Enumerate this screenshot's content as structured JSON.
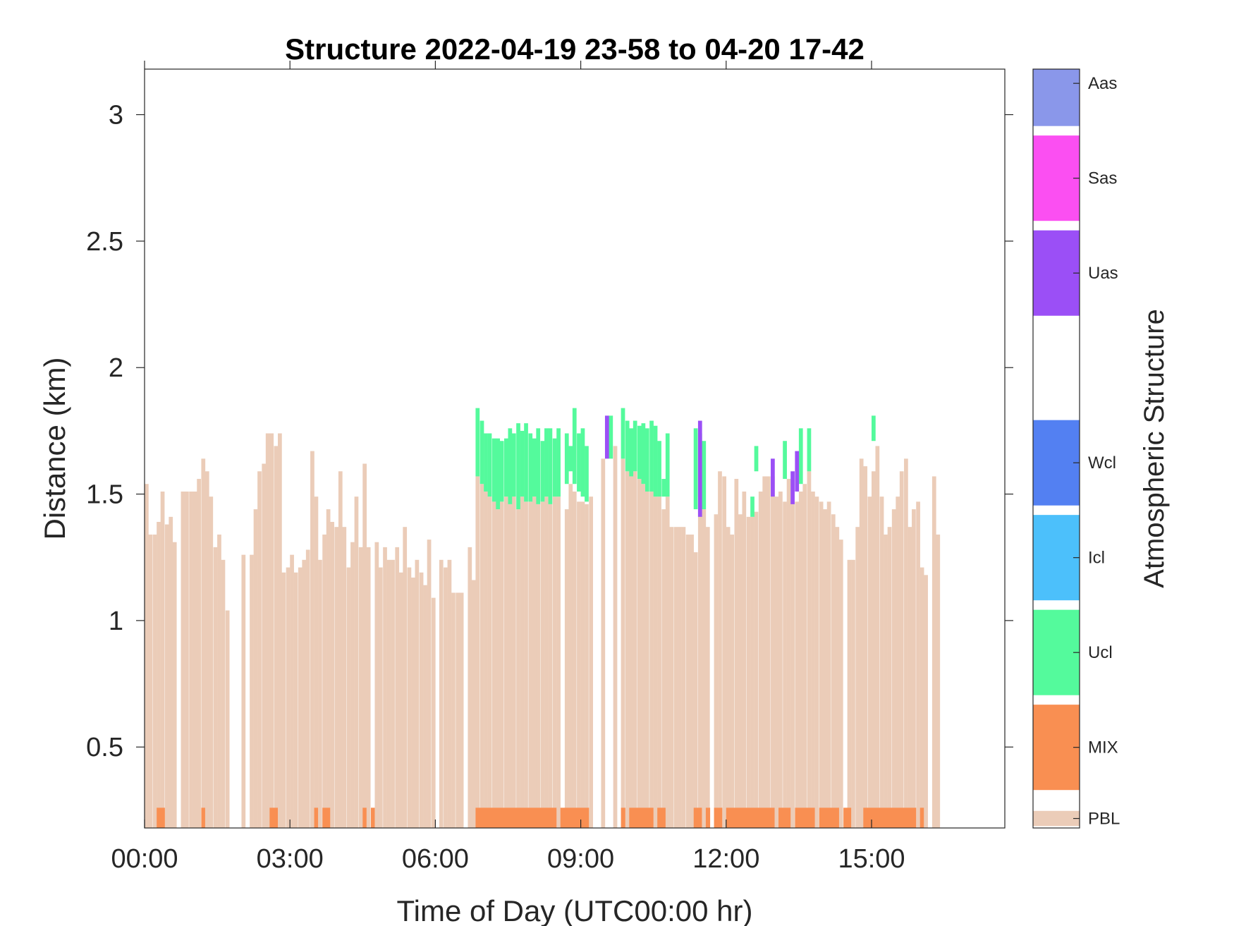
{
  "chart_data": {
    "type": "heatmap",
    "title": "Structure 2022-04-19 23-58 to 04-20 17-42",
    "xlabel": "Time of Day (UTC00:00 hr)",
    "ylabel": "Distance (km)",
    "xlim": [
      0,
      17.75
    ],
    "ylim": [
      0.18,
      3.18
    ],
    "x_ticks": [
      {
        "value": 0,
        "label": "00:00"
      },
      {
        "value": 3,
        "label": "03:00"
      },
      {
        "value": 6,
        "label": "06:00"
      },
      {
        "value": 9,
        "label": "09:00"
      },
      {
        "value": 12,
        "label": "12:00"
      },
      {
        "value": 15,
        "label": "15:00"
      }
    ],
    "y_ticks": [
      {
        "value": 0.5,
        "label": "0.5"
      },
      {
        "value": 1,
        "label": "1"
      },
      {
        "value": 1.5,
        "label": "1.5"
      },
      {
        "value": 2,
        "label": "2"
      },
      {
        "value": 2.5,
        "label": "2.5"
      },
      {
        "value": 3,
        "label": "3"
      }
    ],
    "time_step_hours": 0.0833,
    "colorbar": {
      "title": "Atmospheric Structure",
      "classes": [
        {
          "label": "PBL",
          "color": "#ebccb8"
        },
        {
          "label": "MIX",
          "color": "#f98f52"
        },
        {
          "label": "Ucl",
          "color": "#54fa9c"
        },
        {
          "label": "Icl",
          "color": "#4cc0fb"
        },
        {
          "label": "Wcl",
          "color": "#5380f2"
        },
        {
          "label": "Uas",
          "color": "#9b4ff6"
        },
        {
          "label": "Sas",
          "color": "#fb4ff2"
        },
        {
          "label": "Aas",
          "color": "#8a97ea"
        }
      ]
    },
    "series": [
      {
        "name": "PBL",
        "profile_top_km": [
          [
            0.0,
            1.54
          ],
          [
            0.08,
            1.34
          ],
          [
            0.17,
            1.34
          ],
          [
            0.25,
            1.39
          ],
          [
            0.33,
            1.51
          ],
          [
            0.42,
            1.38
          ],
          [
            0.5,
            1.41
          ],
          [
            0.58,
            1.31
          ],
          [
            0.75,
            1.51
          ],
          [
            0.83,
            1.51
          ],
          [
            0.92,
            1.51
          ],
          [
            1.0,
            1.51
          ],
          [
            1.08,
            1.56
          ],
          [
            1.17,
            1.64
          ],
          [
            1.25,
            1.59
          ],
          [
            1.33,
            1.49
          ],
          [
            1.42,
            1.29
          ],
          [
            1.5,
            1.34
          ],
          [
            1.58,
            1.24
          ],
          [
            1.67,
            1.04
          ],
          [
            2.0,
            1.26
          ],
          [
            2.17,
            1.26
          ],
          [
            2.25,
            1.44
          ],
          [
            2.33,
            1.59
          ],
          [
            2.42,
            1.62
          ],
          [
            2.5,
            1.74
          ],
          [
            2.58,
            1.74
          ],
          [
            2.67,
            1.69
          ],
          [
            2.75,
            1.74
          ],
          [
            2.83,
            1.19
          ],
          [
            2.92,
            1.21
          ],
          [
            3.0,
            1.26
          ],
          [
            3.08,
            1.19
          ],
          [
            3.17,
            1.21
          ],
          [
            3.25,
            1.24
          ],
          [
            3.33,
            1.28
          ],
          [
            3.42,
            1.67
          ],
          [
            3.5,
            1.49
          ],
          [
            3.58,
            1.24
          ],
          [
            3.67,
            1.34
          ],
          [
            3.75,
            1.44
          ],
          [
            3.83,
            1.39
          ],
          [
            3.92,
            1.37
          ],
          [
            4.0,
            1.59
          ],
          [
            4.08,
            1.37
          ],
          [
            4.17,
            1.21
          ],
          [
            4.25,
            1.31
          ],
          [
            4.33,
            1.49
          ],
          [
            4.42,
            1.29
          ],
          [
            4.5,
            1.62
          ],
          [
            4.58,
            1.29
          ],
          [
            4.75,
            1.31
          ],
          [
            4.83,
            1.21
          ],
          [
            4.92,
            1.29
          ],
          [
            5.0,
            1.24
          ],
          [
            5.08,
            1.24
          ],
          [
            5.17,
            1.29
          ],
          [
            5.25,
            1.19
          ],
          [
            5.33,
            1.37
          ],
          [
            5.42,
            1.21
          ],
          [
            5.5,
            1.17
          ],
          [
            5.58,
            1.24
          ],
          [
            5.67,
            1.19
          ],
          [
            5.75,
            1.14
          ],
          [
            5.83,
            1.32
          ],
          [
            5.92,
            1.09
          ],
          [
            6.08,
            1.24
          ],
          [
            6.17,
            1.21
          ],
          [
            6.25,
            1.24
          ],
          [
            6.33,
            1.11
          ],
          [
            6.42,
            1.11
          ],
          [
            6.5,
            1.11
          ],
          [
            6.67,
            1.29
          ],
          [
            6.75,
            1.16
          ],
          [
            6.83,
            1.57
          ],
          [
            6.92,
            1.54
          ],
          [
            7.0,
            1.51
          ],
          [
            7.08,
            1.49
          ],
          [
            7.17,
            1.47
          ],
          [
            7.25,
            1.44
          ],
          [
            7.33,
            1.47
          ],
          [
            7.42,
            1.49
          ],
          [
            7.5,
            1.46
          ],
          [
            7.58,
            1.49
          ],
          [
            7.67,
            1.44
          ],
          [
            7.75,
            1.49
          ],
          [
            7.83,
            1.47
          ],
          [
            7.92,
            1.47
          ],
          [
            8.0,
            1.49
          ],
          [
            8.08,
            1.46
          ],
          [
            8.17,
            1.47
          ],
          [
            8.25,
            1.49
          ],
          [
            8.33,
            1.46
          ],
          [
            8.42,
            1.49
          ],
          [
            8.5,
            1.49
          ],
          [
            8.67,
            1.44
          ],
          [
            8.75,
            1.54
          ],
          [
            8.83,
            1.51
          ],
          [
            8.92,
            1.47
          ],
          [
            9.0,
            1.47
          ],
          [
            9.08,
            1.46
          ],
          [
            9.17,
            1.49
          ],
          [
            9.42,
            1.64
          ],
          [
            9.67,
            1.69
          ],
          [
            9.83,
            1.64
          ],
          [
            9.92,
            1.59
          ],
          [
            10.0,
            1.57
          ],
          [
            10.08,
            1.59
          ],
          [
            10.17,
            1.56
          ],
          [
            10.25,
            1.54
          ],
          [
            10.33,
            1.51
          ],
          [
            10.42,
            1.51
          ],
          [
            10.5,
            1.49
          ],
          [
            10.58,
            1.49
          ],
          [
            10.67,
            1.44
          ],
          [
            10.75,
            1.49
          ],
          [
            10.83,
            1.37
          ],
          [
            10.92,
            1.37
          ],
          [
            11.0,
            1.37
          ],
          [
            11.08,
            1.37
          ],
          [
            11.17,
            1.34
          ],
          [
            11.25,
            1.34
          ],
          [
            11.33,
            1.27
          ],
          [
            11.42,
            1.44
          ],
          [
            11.5,
            1.44
          ],
          [
            11.58,
            1.37
          ],
          [
            11.75,
            1.42
          ],
          [
            11.83,
            1.59
          ],
          [
            11.92,
            1.57
          ],
          [
            12.0,
            1.37
          ],
          [
            12.08,
            1.34
          ],
          [
            12.17,
            1.56
          ],
          [
            12.25,
            1.42
          ],
          [
            12.33,
            1.51
          ],
          [
            12.42,
            1.41
          ],
          [
            12.5,
            1.41
          ],
          [
            12.58,
            1.43
          ],
          [
            12.67,
            1.51
          ],
          [
            12.75,
            1.57
          ],
          [
            12.83,
            1.57
          ],
          [
            12.92,
            1.57
          ],
          [
            13.0,
            1.49
          ],
          [
            13.08,
            1.51
          ],
          [
            13.17,
            1.47
          ],
          [
            13.25,
            1.56
          ],
          [
            13.33,
            1.47
          ],
          [
            13.42,
            1.47
          ],
          [
            13.5,
            1.51
          ],
          [
            13.58,
            1.54
          ],
          [
            13.67,
            1.59
          ],
          [
            13.75,
            1.51
          ],
          [
            13.83,
            1.49
          ],
          [
            13.92,
            1.47
          ],
          [
            14.0,
            1.44
          ],
          [
            14.08,
            1.47
          ],
          [
            14.17,
            1.42
          ],
          [
            14.25,
            1.37
          ],
          [
            14.33,
            1.32
          ],
          [
            14.5,
            1.24
          ],
          [
            14.58,
            1.24
          ],
          [
            14.67,
            1.37
          ],
          [
            14.75,
            1.64
          ],
          [
            14.83,
            1.61
          ],
          [
            14.92,
            1.49
          ],
          [
            15.0,
            1.59
          ],
          [
            15.08,
            1.69
          ],
          [
            15.17,
            1.49
          ],
          [
            15.25,
            1.34
          ],
          [
            15.33,
            1.37
          ],
          [
            15.42,
            1.44
          ],
          [
            15.5,
            1.49
          ],
          [
            15.58,
            1.59
          ],
          [
            15.67,
            1.64
          ],
          [
            15.75,
            1.37
          ],
          [
            15.83,
            1.44
          ],
          [
            15.92,
            1.47
          ],
          [
            16.0,
            1.21
          ],
          [
            16.08,
            1.18
          ],
          [
            16.25,
            1.57
          ],
          [
            16.33,
            1.34
          ]
        ]
      },
      {
        "name": "MIX",
        "spans_hours": [
          [
            0.25,
            0.42
          ],
          [
            1.17,
            1.25
          ],
          [
            2.58,
            2.75
          ],
          [
            3.5,
            3.58
          ],
          [
            3.67,
            3.83
          ],
          [
            4.5,
            4.58
          ],
          [
            4.67,
            4.75
          ],
          [
            6.83,
            8.5
          ],
          [
            8.58,
            9.17
          ],
          [
            9.83,
            9.92
          ],
          [
            10.0,
            10.5
          ],
          [
            10.58,
            10.75
          ],
          [
            11.33,
            11.5
          ],
          [
            11.58,
            11.67
          ],
          [
            11.75,
            11.92
          ],
          [
            12.0,
            13.0
          ],
          [
            13.08,
            13.33
          ],
          [
            13.42,
            13.83
          ],
          [
            13.92,
            14.33
          ],
          [
            14.42,
            14.58
          ],
          [
            14.83,
            15.92
          ],
          [
            16.0,
            16.08
          ]
        ],
        "depth_km": [
          0.18,
          0.26
        ]
      },
      {
        "name": "Ucl",
        "segments": [
          [
            6.83,
            1.57,
            1.84
          ],
          [
            6.92,
            1.54,
            1.79
          ],
          [
            7.0,
            1.51,
            1.74
          ],
          [
            7.08,
            1.49,
            1.74
          ],
          [
            7.17,
            1.47,
            1.72
          ],
          [
            7.25,
            1.44,
            1.72
          ],
          [
            7.33,
            1.47,
            1.71
          ],
          [
            7.42,
            1.49,
            1.72
          ],
          [
            7.5,
            1.46,
            1.76
          ],
          [
            7.58,
            1.49,
            1.74
          ],
          [
            7.67,
            1.44,
            1.78
          ],
          [
            7.75,
            1.49,
            1.75
          ],
          [
            7.83,
            1.47,
            1.78
          ],
          [
            7.92,
            1.47,
            1.74
          ],
          [
            8.0,
            1.49,
            1.72
          ],
          [
            8.08,
            1.46,
            1.76
          ],
          [
            8.17,
            1.47,
            1.71
          ],
          [
            8.25,
            1.49,
            1.76
          ],
          [
            8.33,
            1.46,
            1.76
          ],
          [
            8.42,
            1.49,
            1.72
          ],
          [
            8.5,
            1.49,
            1.76
          ],
          [
            8.67,
            1.54,
            1.74
          ],
          [
            8.75,
            1.59,
            1.69
          ],
          [
            8.83,
            1.54,
            1.84
          ],
          [
            8.92,
            1.51,
            1.74
          ],
          [
            9.0,
            1.49,
            1.76
          ],
          [
            9.08,
            1.47,
            1.69
          ],
          [
            9.58,
            1.64,
            1.81
          ],
          [
            9.83,
            1.64,
            1.84
          ],
          [
            9.92,
            1.59,
            1.79
          ],
          [
            10.0,
            1.57,
            1.76
          ],
          [
            10.08,
            1.59,
            1.79
          ],
          [
            10.17,
            1.56,
            1.77
          ],
          [
            10.25,
            1.54,
            1.78
          ],
          [
            10.33,
            1.51,
            1.76
          ],
          [
            10.42,
            1.51,
            1.79
          ],
          [
            10.5,
            1.49,
            1.77
          ],
          [
            10.58,
            1.49,
            1.71
          ],
          [
            10.67,
            1.49,
            1.56
          ],
          [
            10.75,
            1.49,
            1.74
          ],
          [
            11.33,
            1.44,
            1.76
          ],
          [
            11.42,
            1.49,
            1.74
          ],
          [
            11.5,
            1.44,
            1.71
          ],
          [
            12.5,
            1.41,
            1.49
          ],
          [
            12.58,
            1.59,
            1.69
          ],
          [
            13.17,
            1.56,
            1.71
          ],
          [
            13.5,
            1.54,
            1.76
          ],
          [
            13.67,
            1.59,
            1.76
          ],
          [
            15.0,
            1.71,
            1.81
          ]
        ]
      },
      {
        "name": "Uas",
        "segments": [
          [
            9.5,
            1.64,
            1.81
          ],
          [
            11.42,
            1.41,
            1.79
          ],
          [
            12.92,
            1.49,
            1.64
          ],
          [
            13.33,
            1.46,
            1.59
          ],
          [
            13.42,
            1.51,
            1.67
          ]
        ]
      }
    ]
  }
}
